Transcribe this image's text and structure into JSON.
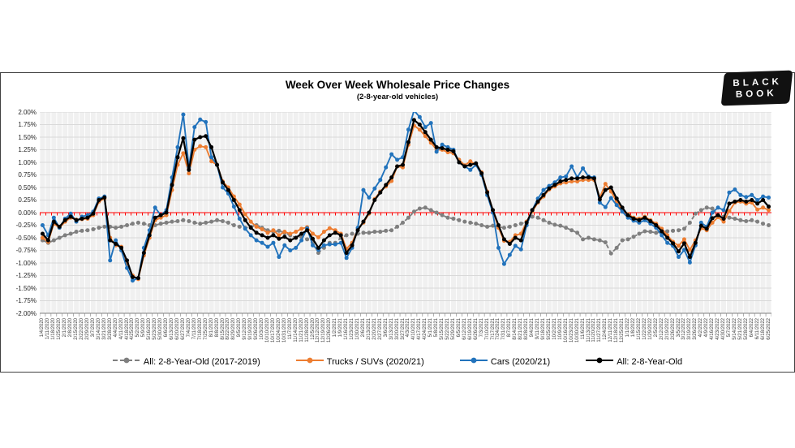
{
  "header": {
    "title": "Week Over Week Wholesale Price Changes",
    "subtitle": "(2-8-year-old vehicles)"
  },
  "logo": {
    "line1": "BLACK",
    "line2": "BOOK"
  },
  "y_axis": {
    "labels": [
      "2.00%",
      "1.75%",
      "1.50%",
      "1.25%",
      "1.00%",
      "0.75%",
      "0.50%",
      "0.25%",
      "0.00%",
      "-0.25%",
      "-0.50%",
      "-0.75%",
      "-1.00%",
      "-1.25%",
      "-1.50%",
      "-1.75%",
      "-2.00%"
    ]
  },
  "colors": {
    "gray_series": "#7F7F7F",
    "orange_series": "#ED7D31",
    "blue_series": "#2273BC",
    "black_series": "#000000",
    "zero_line": "#FF0000",
    "plot_background": "#F0F0F0",
    "h_gridline": "#D9D9D9",
    "v_gridline": "#FFFFFF",
    "panel_border": "#404040"
  },
  "chart_data": {
    "type": "line",
    "title": "Week Over Week Wholesale Price Changes",
    "subtitle": "(2-8-year-old vehicles)",
    "ylabel": "",
    "xlabel": "",
    "ylim": [
      -2.0,
      2.0
    ],
    "ytick_step": 0.25,
    "grid": true,
    "legend_position": "bottom",
    "zero_line_value": 0.0,
    "x": [
      "1/4/2020",
      "1/11/2020",
      "1/18/2020",
      "1/25/2020",
      "2/1/2020",
      "2/8/2020",
      "2/15/2020",
      "2/22/2020",
      "2/29/2020",
      "3/7/2020",
      "3/14/2020",
      "3/21/2020",
      "3/28/2020",
      "4/4/2020",
      "4/11/2020",
      "4/18/2020",
      "4/25/2020",
      "5/2/2020",
      "5/9/2020",
      "5/16/2020",
      "5/23/2020",
      "5/30/2020",
      "6/6/2020",
      "6/13/2020",
      "6/20/2020",
      "6/27/2020",
      "7/4/2020",
      "7/11/2020",
      "7/18/2020",
      "7/25/2020",
      "8/1/2020",
      "8/8/2020",
      "8/15/2020",
      "8/22/2020",
      "8/29/2020",
      "9/5/2020",
      "9/12/2020",
      "9/19/2020",
      "9/26/2020",
      "10/3/2020",
      "10/10/2020",
      "10/17/2020",
      "10/24/2020",
      "10/31/2020",
      "11/7/2020",
      "11/14/2020",
      "11/21/2020",
      "11/28/2020",
      "12/5/2020",
      "12/12/2020",
      "12/19/2020",
      "12/26/2020",
      "1/2/2021",
      "1/9/2021",
      "1/16/2021",
      "1/23/2021",
      "1/30/2021",
      "2/6/2021",
      "2/13/2021",
      "2/20/2021",
      "2/27/2021",
      "3/6/2021",
      "3/13/2021",
      "3/20/2021",
      "3/27/2021",
      "4/3/2021",
      "4/10/2021",
      "4/17/2021",
      "4/24/2021",
      "5/1/2021",
      "5/8/2021",
      "5/15/2021",
      "5/22/2021",
      "5/29/2021",
      "6/5/2021",
      "6/12/2021",
      "6/19/2021",
      "6/26/2021",
      "7/3/2021",
      "7/10/2021",
      "7/17/2021",
      "7/24/2021",
      "7/31/2021",
      "8/7/2021",
      "8/14/2021",
      "8/21/2021",
      "8/28/2021",
      "9/4/2021",
      "9/11/2021",
      "9/18/2021",
      "9/25/2021",
      "10/2/2021",
      "10/9/2021",
      "10/16/2021",
      "10/23/2021",
      "10/30/2021",
      "11/6/2021",
      "11/13/2021",
      "11/20/2021",
      "11/27/2021",
      "12/4/2021",
      "12/11/2021",
      "12/18/2021",
      "12/25/2021",
      "1/1/2022",
      "1/8/2022",
      "1/15/2022",
      "1/22/2022",
      "1/29/2022",
      "2/5/2022",
      "2/12/2022",
      "2/19/2022",
      "2/26/2022",
      "3/5/2022",
      "3/12/2022",
      "3/19/2022",
      "3/26/2022",
      "4/2/2022",
      "4/9/2022",
      "4/16/2022",
      "4/23/2022",
      "4/30/2022",
      "5/7/2022",
      "5/14/2022",
      "5/21/2022",
      "5/28/2022",
      "6/4/2022",
      "6/11/2022",
      "6/18/2022",
      "6/25/2022"
    ],
    "series": [
      {
        "name": "All: 2-8-Year-Old (2017-2019)",
        "color": "#7F7F7F",
        "style": "dashed",
        "values": [
          -0.55,
          -0.6,
          -0.55,
          -0.5,
          -0.45,
          -0.42,
          -0.38,
          -0.36,
          -0.35,
          -0.33,
          -0.3,
          -0.28,
          -0.28,
          -0.3,
          -0.28,
          -0.25,
          -0.22,
          -0.2,
          -0.22,
          -0.25,
          -0.25,
          -0.22,
          -0.2,
          -0.18,
          -0.17,
          -0.15,
          -0.17,
          -0.2,
          -0.22,
          -0.2,
          -0.18,
          -0.15,
          -0.17,
          -0.2,
          -0.25,
          -0.28,
          -0.3,
          -0.28,
          -0.25,
          -0.3,
          -0.35,
          -0.38,
          -0.36,
          -0.4,
          -0.45,
          -0.5,
          -0.48,
          -0.53,
          -0.6,
          -0.8,
          -0.7,
          -0.6,
          -0.6,
          -0.5,
          -0.45,
          -0.42,
          -0.42,
          -0.4,
          -0.4,
          -0.38,
          -0.38,
          -0.36,
          -0.35,
          -0.28,
          -0.2,
          -0.1,
          0.02,
          0.08,
          0.1,
          0.05,
          0.0,
          -0.05,
          -0.1,
          -0.12,
          -0.15,
          -0.18,
          -0.2,
          -0.22,
          -0.25,
          -0.28,
          -0.26,
          -0.28,
          -0.3,
          -0.28,
          -0.25,
          -0.22,
          -0.18,
          -0.08,
          -0.1,
          -0.15,
          -0.2,
          -0.24,
          -0.26,
          -0.3,
          -0.35,
          -0.4,
          -0.53,
          -0.5,
          -0.53,
          -0.55,
          -0.59,
          -0.81,
          -0.7,
          -0.55,
          -0.53,
          -0.48,
          -0.42,
          -0.37,
          -0.38,
          -0.4,
          -0.38,
          -0.37,
          -0.36,
          -0.35,
          -0.32,
          -0.2,
          -0.02,
          0.05,
          0.1,
          0.08,
          -0.05,
          -0.08,
          -0.1,
          -0.12,
          -0.15,
          -0.17,
          -0.15,
          -0.18,
          -0.22,
          -0.25
        ]
      },
      {
        "name": "Trucks / SUVs (2020/21)",
        "color": "#ED7D31",
        "style": "solid",
        "values": [
          -0.5,
          -0.58,
          -0.22,
          -0.3,
          -0.18,
          -0.1,
          -0.14,
          -0.13,
          -0.12,
          -0.05,
          0.22,
          0.28,
          -0.5,
          -0.65,
          -0.68,
          -1.0,
          -1.25,
          -1.32,
          -0.85,
          -0.5,
          -0.15,
          -0.1,
          -0.05,
          0.45,
          0.95,
          1.18,
          0.78,
          1.25,
          1.32,
          1.3,
          1.02,
          0.95,
          0.62,
          0.5,
          0.32,
          0.16,
          -0.03,
          -0.18,
          -0.28,
          -0.33,
          -0.4,
          -0.35,
          -0.45,
          -0.38,
          -0.42,
          -0.38,
          -0.32,
          -0.29,
          -0.42,
          -0.49,
          -0.38,
          -0.31,
          -0.35,
          -0.42,
          -0.72,
          -0.6,
          -0.32,
          -0.2,
          -0.02,
          0.27,
          0.42,
          0.52,
          0.63,
          0.92,
          0.9,
          1.35,
          1.73,
          1.65,
          1.52,
          1.39,
          1.25,
          1.25,
          1.2,
          1.18,
          1.05,
          0.94,
          1.02,
          0.95,
          0.8,
          0.42,
          0.05,
          -0.3,
          -0.56,
          -0.58,
          -0.45,
          -0.42,
          -0.18,
          0.02,
          0.2,
          0.32,
          0.46,
          0.52,
          0.58,
          0.6,
          0.62,
          0.62,
          0.65,
          0.65,
          0.65,
          0.3,
          0.57,
          0.42,
          0.22,
          0.05,
          -0.03,
          -0.1,
          -0.12,
          -0.08,
          -0.15,
          -0.22,
          -0.32,
          -0.45,
          -0.58,
          -0.66,
          -0.53,
          -0.74,
          -0.55,
          -0.31,
          -0.35,
          -0.2,
          -0.09,
          -0.18,
          0.03,
          0.2,
          0.22,
          0.18,
          0.2,
          0.06,
          0.1,
          0.05
        ]
      },
      {
        "name": "Cars (2020/21)",
        "color": "#2273BC",
        "style": "solid",
        "values": [
          -0.25,
          -0.45,
          -0.1,
          -0.3,
          -0.12,
          -0.02,
          -0.18,
          -0.08,
          -0.05,
          0.02,
          0.28,
          0.32,
          -0.95,
          -0.55,
          -0.75,
          -1.1,
          -1.35,
          -1.3,
          -0.7,
          -0.35,
          0.1,
          -0.05,
          0.05,
          0.7,
          1.3,
          1.95,
          0.9,
          1.7,
          1.85,
          1.8,
          1.1,
          0.95,
          0.5,
          0.38,
          0.12,
          -0.12,
          -0.32,
          -0.45,
          -0.55,
          -0.6,
          -0.68,
          -0.6,
          -0.88,
          -0.65,
          -0.75,
          -0.7,
          -0.55,
          -0.31,
          -0.65,
          -0.74,
          -0.65,
          -0.63,
          -0.63,
          -0.6,
          -0.9,
          -0.7,
          -0.3,
          0.45,
          0.3,
          0.48,
          0.65,
          0.9,
          1.16,
          1.05,
          1.1,
          1.65,
          2.03,
          1.9,
          1.7,
          1.78,
          1.21,
          1.35,
          1.3,
          1.25,
          1.0,
          0.92,
          0.85,
          0.95,
          0.75,
          0.35,
          0.0,
          -0.7,
          -1.02,
          -0.84,
          -0.66,
          -0.73,
          -0.25,
          0.05,
          0.28,
          0.45,
          0.53,
          0.6,
          0.7,
          0.72,
          0.92,
          0.7,
          0.88,
          0.72,
          0.7,
          0.2,
          0.11,
          0.29,
          0.15,
          0.02,
          -0.1,
          -0.16,
          -0.2,
          -0.15,
          -0.22,
          -0.3,
          -0.45,
          -0.6,
          -0.66,
          -0.88,
          -0.74,
          -0.99,
          -0.65,
          -0.2,
          -0.28,
          0.0,
          0.1,
          0.05,
          0.4,
          0.46,
          0.35,
          0.31,
          0.35,
          0.25,
          0.32,
          0.3
        ]
      },
      {
        "name": "All: 2-8-Year-Old",
        "color": "#000000",
        "style": "solid",
        "values": [
          -0.42,
          -0.55,
          -0.18,
          -0.28,
          -0.15,
          -0.08,
          -0.15,
          -0.12,
          -0.1,
          -0.02,
          0.25,
          0.3,
          -0.55,
          -0.62,
          -0.7,
          -0.95,
          -1.28,
          -1.3,
          -0.8,
          -0.45,
          -0.1,
          -0.05,
          0.0,
          0.55,
          1.1,
          1.48,
          0.85,
          1.45,
          1.5,
          1.52,
          1.3,
          0.95,
          0.6,
          0.45,
          0.25,
          0.05,
          -0.15,
          -0.3,
          -0.4,
          -0.45,
          -0.5,
          -0.45,
          -0.52,
          -0.48,
          -0.55,
          -0.5,
          -0.42,
          -0.35,
          -0.52,
          -0.7,
          -0.55,
          -0.45,
          -0.4,
          -0.45,
          -0.8,
          -0.65,
          -0.35,
          -0.18,
          0.0,
          0.25,
          0.4,
          0.55,
          0.7,
          0.92,
          0.95,
          1.4,
          1.84,
          1.75,
          1.6,
          1.45,
          1.3,
          1.28,
          1.25,
          1.22,
          1.0,
          0.92,
          0.95,
          0.98,
          0.78,
          0.4,
          0.05,
          -0.25,
          -0.53,
          -0.62,
          -0.5,
          -0.55,
          -0.2,
          0.05,
          0.22,
          0.35,
          0.48,
          0.55,
          0.62,
          0.65,
          0.68,
          0.68,
          0.7,
          0.7,
          0.68,
          0.26,
          0.45,
          0.5,
          0.28,
          0.1,
          -0.05,
          -0.12,
          -0.15,
          -0.1,
          -0.17,
          -0.25,
          -0.37,
          -0.5,
          -0.61,
          -0.77,
          -0.61,
          -0.88,
          -0.6,
          -0.26,
          -0.32,
          -0.11,
          -0.05,
          -0.12,
          0.18,
          0.22,
          0.25,
          0.22,
          0.25,
          0.18,
          0.25,
          0.12
        ]
      }
    ]
  }
}
